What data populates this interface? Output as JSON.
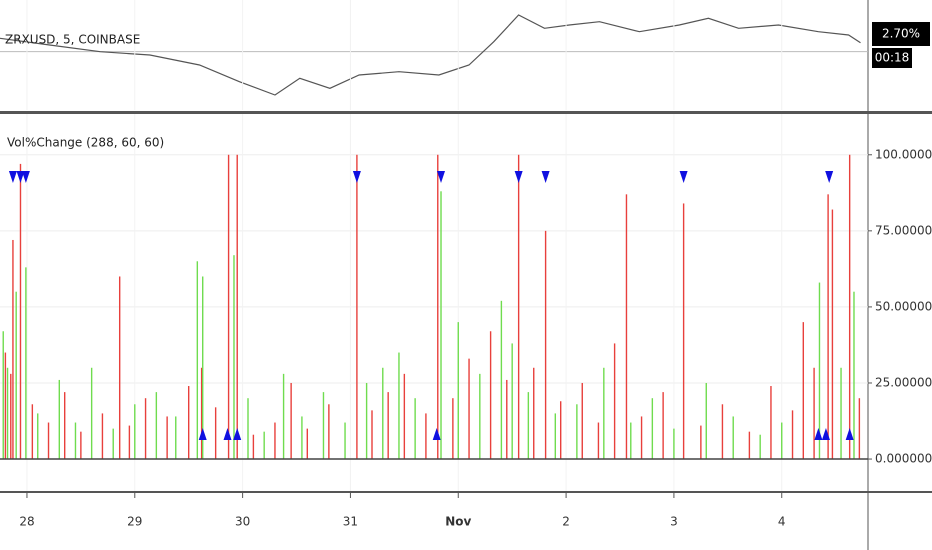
{
  "chart_data": [
    {
      "type": "line",
      "title": "ZRXUSD, 5, COINBASE",
      "color": "#555555",
      "x": [
        27.75,
        28.21,
        28.68,
        29.14,
        29.6,
        29.97,
        30.3,
        30.53,
        30.81,
        31.08,
        31.45,
        31.82,
        32.1,
        32.33,
        32.56,
        32.8,
        33.03,
        33.31,
        33.68,
        34.05,
        34.32,
        34.6,
        34.97,
        35.34,
        35.62,
        35.73
      ],
      "values": [
        4,
        2,
        0,
        -1,
        -4,
        -9,
        -13,
        -8,
        -11,
        -7,
        -6,
        -7,
        -4,
        3,
        11,
        7,
        8,
        9,
        6,
        8,
        10,
        7,
        8,
        6,
        5,
        2.7
      ],
      "reference_value": 0,
      "last_label": "2.70%",
      "countdown": "00:18",
      "xlim": [
        27.75,
        35.8
      ],
      "ylim": [
        -17.5,
        15.5
      ]
    },
    {
      "type": "bar",
      "title": "Vol%Change (288, 60, 60)",
      "series": [
        {
          "color": "#e8403c",
          "x": [
            27.8,
            27.85,
            28.05,
            28.2,
            28.35,
            28.5,
            28.7,
            28.95,
            29.1,
            29.3,
            29.5,
            29.62,
            29.75,
            30.1,
            30.3,
            30.45,
            30.6,
            30.8,
            31.2,
            31.35,
            31.5,
            31.7,
            31.95,
            32.1,
            32.3,
            32.45,
            32.7,
            32.95,
            33.15,
            33.3,
            33.45,
            33.7,
            33.9,
            34.25,
            34.45,
            34.7,
            34.9,
            35.1,
            35.3,
            35.72,
            27.87,
            27.94,
            28.86,
            29.87,
            29.95,
            31.06,
            31.81,
            32.56,
            32.81,
            33.56,
            34.09,
            35.2,
            35.43,
            35.47,
            35.63
          ],
          "values": [
            35,
            28,
            18,
            12,
            22,
            9,
            15,
            11,
            20,
            14,
            24,
            30,
            17,
            8,
            12,
            25,
            10,
            18,
            16,
            22,
            28,
            15,
            20,
            33,
            42,
            26,
            30,
            19,
            25,
            12,
            38,
            14,
            22,
            11,
            18,
            9,
            24,
            16,
            30,
            20,
            72,
            97,
            60,
            100,
            100,
            100,
            100,
            100,
            75,
            87,
            84,
            45,
            87,
            82,
            100
          ]
        },
        {
          "color": "#6fdc4e",
          "x": [
            27.78,
            27.82,
            27.9,
            27.99,
            28.1,
            28.3,
            28.45,
            28.6,
            28.8,
            29.0,
            29.2,
            29.38,
            29.58,
            29.63,
            29.92,
            30.05,
            30.2,
            30.38,
            30.55,
            30.75,
            30.95,
            31.15,
            31.3,
            31.45,
            31.6,
            31.84,
            32.0,
            32.2,
            32.4,
            32.5,
            32.65,
            32.9,
            33.1,
            33.35,
            33.6,
            33.8,
            34.0,
            34.3,
            34.55,
            34.8,
            35.0,
            35.35,
            35.55,
            35.67
          ],
          "values": [
            42,
            30,
            55,
            63,
            15,
            26,
            12,
            30,
            10,
            18,
            22,
            14,
            65,
            60,
            67,
            20,
            9,
            28,
            14,
            22,
            12,
            25,
            30,
            35,
            20,
            88,
            45,
            28,
            52,
            38,
            22,
            15,
            18,
            30,
            12,
            20,
            10,
            25,
            14,
            8,
            12,
            58,
            30,
            55
          ]
        }
      ],
      "signals": {
        "color": "#1010e0",
        "down_x": [
          27.87,
          27.94,
          27.99,
          31.06,
          31.84,
          32.56,
          32.81,
          34.09,
          35.44
        ],
        "up_x": [
          29.63,
          29.86,
          29.95,
          31.8,
          35.34,
          35.41,
          35.63
        ]
      },
      "xlim": [
        27.75,
        35.8
      ],
      "ylim": [
        -10.5,
        113.4
      ],
      "grid": true,
      "xticks": [
        28,
        29,
        30,
        31,
        {
          "value": 32,
          "label": "Nov"
        },
        {
          "value": 33,
          "label": "2"
        },
        {
          "value": 34,
          "label": "3"
        },
        {
          "value": 35,
          "label": "4"
        }
      ],
      "yticks": [
        {
          "value": 0,
          "label": "0.000000"
        },
        {
          "value": 25,
          "label": "25.000000"
        },
        {
          "value": 50,
          "label": "50.000000"
        },
        {
          "value": 75,
          "label": "75.000000"
        },
        {
          "value": 100,
          "label": "100.000000"
        }
      ]
    }
  ]
}
